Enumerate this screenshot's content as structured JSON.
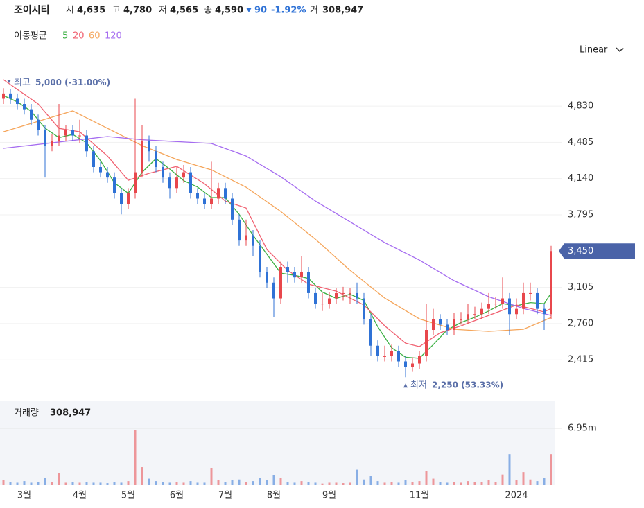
{
  "header": {
    "name": "조이시티",
    "open_label": "시",
    "open": "4,635",
    "high_label": "고",
    "high": "4,780",
    "low_label": "저",
    "low": "4,565",
    "close_label": "종",
    "close": "4,590",
    "change": "90",
    "change_pct": "-1.92%",
    "volume_label": "거",
    "volume": "308,947",
    "ma_label": "이동평균",
    "scale_mode": "Linear"
  },
  "chart_data": {
    "type": "candlestick",
    "categories": [
      null,
      null,
      null,
      "3월",
      null,
      null,
      null,
      null,
      null,
      null,
      null,
      "4월",
      null,
      null,
      null,
      null,
      null,
      null,
      "5월",
      null,
      null,
      null,
      null,
      null,
      null,
      "6월",
      null,
      null,
      null,
      null,
      null,
      null,
      "7월",
      null,
      null,
      null,
      null,
      null,
      null,
      "8월",
      null,
      null,
      null,
      null,
      null,
      null,
      null,
      "9월",
      null,
      null,
      null,
      null,
      null,
      null,
      null,
      null,
      null,
      null,
      null,
      null,
      "11월",
      null,
      null,
      null,
      null,
      null,
      null,
      null,
      null,
      null,
      null,
      null,
      null,
      null,
      "2024",
      null,
      null,
      null,
      null,
      null
    ],
    "open": [
      4900,
      4950,
      4900,
      4850,
      4800,
      4700,
      4600,
      4450,
      4500,
      4550,
      4600,
      4550,
      4550,
      4400,
      4250,
      4200,
      4150,
      4000,
      3900,
      4000,
      4200,
      4500,
      4400,
      4250,
      4150,
      4050,
      4150,
      4200,
      4000,
      3950,
      3900,
      3950,
      4050,
      3950,
      3750,
      3550,
      3600,
      3500,
      3250,
      3150,
      3000,
      3300,
      3250,
      3200,
      3250,
      3050,
      2950,
      2950,
      3000,
      3050,
      3050,
      3050,
      3000,
      2800,
      2550,
      2450,
      2450,
      2500,
      2400,
      2350,
      2380,
      2450,
      2700,
      2800,
      2750,
      2700,
      2800,
      2800,
      2850,
      2850,
      2900,
      2950,
      2950,
      3000,
      2850,
      2900,
      3050,
      3050,
      2900,
      2850
    ],
    "high": [
      5000,
      4990,
      4950,
      4900,
      4850,
      4750,
      4650,
      4560,
      4850,
      4650,
      4650,
      4700,
      4600,
      4450,
      4300,
      4250,
      4200,
      4050,
      4050,
      4900,
      4650,
      4550,
      4450,
      4300,
      4200,
      4250,
      4270,
      4250,
      4050,
      4000,
      4300,
      4100,
      4100,
      4000,
      3800,
      3750,
      3650,
      3550,
      3300,
      3200,
      3350,
      3350,
      3300,
      3400,
      3300,
      3100,
      3050,
      3060,
      3100,
      3110,
      3100,
      3150,
      3050,
      2850,
      2600,
      2550,
      2560,
      2550,
      2450,
      2440,
      2500,
      2950,
      2900,
      2850,
      2800,
      2860,
      2870,
      2950,
      2920,
      2960,
      3050,
      3010,
      3200,
      3050,
      3000,
      3150,
      3150,
      3100,
      2950,
      3500
    ],
    "low": [
      4850,
      4850,
      4800,
      4750,
      4650,
      4550,
      4150,
      4400,
      4450,
      4500,
      4500,
      4480,
      4350,
      4200,
      4150,
      4100,
      3950,
      3800,
      3850,
      3950,
      4150,
      4300,
      4200,
      4100,
      3950,
      4000,
      4100,
      3950,
      3900,
      3850,
      3850,
      3900,
      3900,
      3700,
      3500,
      3500,
      3400,
      3200,
      3100,
      2820,
      2950,
      3150,
      3150,
      3150,
      3000,
      2900,
      2880,
      2900,
      2950,
      2980,
      2950,
      2950,
      2750,
      2450,
      2400,
      2400,
      2400,
      2350,
      2250,
      2300,
      2330,
      2400,
      2650,
      2700,
      2650,
      2650,
      2750,
      2760,
      2800,
      2800,
      2850,
      2900,
      2900,
      2650,
      2800,
      2850,
      2980,
      2850,
      2700,
      2800
    ],
    "close": [
      4950,
      4900,
      4850,
      4800,
      4700,
      4600,
      4450,
      4500,
      4550,
      4600,
      4550,
      4550,
      4400,
      4250,
      4200,
      4150,
      4000,
      3900,
      4000,
      4200,
      4500,
      4400,
      4250,
      4150,
      4050,
      4150,
      4200,
      4000,
      3950,
      3900,
      3950,
      4050,
      3950,
      3750,
      3550,
      3600,
      3500,
      3250,
      3150,
      3000,
      3300,
      3250,
      3200,
      3250,
      3050,
      2950,
      2950,
      3000,
      3050,
      3050,
      3050,
      3000,
      2800,
      2550,
      2450,
      2450,
      2500,
      2400,
      2350,
      2380,
      2450,
      2700,
      2800,
      2750,
      2700,
      2800,
      2800,
      2850,
      2850,
      2900,
      2950,
      2950,
      3000,
      2850,
      2900,
      3050,
      3050,
      2900,
      2850,
      3450
    ],
    "up_color": "#e8474c",
    "down_color": "#2f72d6",
    "moving_averages": [
      {
        "name": "5",
        "color": "#3cb043",
        "x": [
          0,
          2,
          4,
          6,
          8,
          10,
          12,
          14,
          16,
          18,
          20,
          22,
          24,
          26,
          28,
          30,
          32,
          34,
          36,
          38,
          40,
          42,
          44,
          46,
          48,
          50,
          52,
          54,
          56,
          58,
          60,
          62,
          64,
          66,
          68,
          70,
          72,
          74,
          76,
          78,
          79
        ],
        "values": [
          4930,
          4870,
          4780,
          4620,
          4530,
          4560,
          4480,
          4310,
          4100,
          4000,
          4200,
          4330,
          4230,
          4120,
          4060,
          3960,
          3960,
          3800,
          3600,
          3420,
          3240,
          3220,
          3190,
          3060,
          3000,
          3040,
          2980,
          2730,
          2530,
          2440,
          2430,
          2560,
          2700,
          2770,
          2820,
          2880,
          2950,
          2930,
          2960,
          2950,
          3050
        ]
      },
      {
        "name": "20",
        "color": "#f06070",
        "x": [
          0,
          5,
          8,
          11,
          15,
          18,
          21,
          25,
          29,
          32,
          35,
          38,
          41,
          44,
          48,
          52,
          55,
          58,
          60,
          63,
          66,
          70,
          74,
          78,
          79
        ],
        "values": [
          5081,
          4850,
          4619,
          4586,
          4355,
          4124,
          4190,
          4256,
          4091,
          3926,
          3860,
          3465,
          3267,
          3135,
          3069,
          2937,
          2739,
          2574,
          2541,
          2673,
          2739,
          2838,
          2937,
          2871,
          2904
        ]
      },
      {
        "name": "60",
        "color": "#f5a55a",
        "x": [
          0,
          5,
          10,
          15,
          20,
          25,
          30,
          35,
          40,
          45,
          50,
          55,
          60,
          65,
          70,
          75,
          79
        ],
        "values": [
          4586,
          4685,
          4784,
          4619,
          4454,
          4322,
          4223,
          4058,
          3827,
          3563,
          3267,
          3003,
          2805,
          2706,
          2686,
          2706,
          2818
        ]
      },
      {
        "name": "120",
        "color": "#a56cf0",
        "x": [
          0,
          15,
          20,
          30,
          35,
          40,
          45,
          50,
          55,
          60,
          65,
          70,
          75,
          79
        ],
        "values": [
          4428,
          4540,
          4510,
          4474,
          4355,
          4157,
          3926,
          3728,
          3530,
          3365,
          3168,
          3016,
          2904,
          2838
        ]
      }
    ],
    "ylim": [
      2080,
      5180
    ],
    "yticks": [
      {
        "value": 2415,
        "label": "2,415"
      },
      {
        "value": 2760,
        "label": "2,760"
      },
      {
        "value": 3105,
        "label": "3,105"
      },
      {
        "value": 3795,
        "label": "3,795"
      },
      {
        "value": 4140,
        "label": "4,140"
      },
      {
        "value": 4485,
        "label": "4,485"
      },
      {
        "value": 4830,
        "label": "4,830"
      }
    ],
    "last_price": {
      "value": 3450,
      "label": "3,450"
    },
    "max_annotation": {
      "label": "최고",
      "value": 5000,
      "text": "5,000 (-31.00%)"
    },
    "min_annotation": {
      "label": "최저",
      "value": 2250,
      "text": "2,250 (53.33%)"
    },
    "volume": {
      "label": "거래량",
      "current": "308,947",
      "values": [
        600000,
        400000,
        300000,
        500000,
        300000,
        400000,
        900000,
        400000,
        1500000,
        300000,
        400000,
        300000,
        400000,
        300000,
        300000,
        250000,
        400000,
        300000,
        500000,
        6700000,
        2200000,
        800000,
        500000,
        400000,
        300000,
        400000,
        300000,
        500000,
        300000,
        300000,
        2100000,
        600000,
        400000,
        600000,
        700000,
        400000,
        500000,
        900000,
        600000,
        1200000,
        900000,
        400000,
        300000,
        500000,
        400000,
        300000,
        200000,
        300000,
        300000,
        250000,
        300000,
        1900000,
        700000,
        1100000,
        500000,
        300000,
        400000,
        300000,
        600000,
        400000,
        500000,
        1700000,
        800000,
        400000,
        300000,
        400000,
        300000,
        500000,
        400000,
        400000,
        600000,
        400000,
        1300000,
        3800000,
        600000,
        1600000,
        700000,
        500000,
        900000,
        3800000
      ],
      "ylim": [
        0,
        10340000
      ],
      "yticks": [
        {
          "value": 6950000,
          "label": "6.95m"
        }
      ]
    }
  }
}
